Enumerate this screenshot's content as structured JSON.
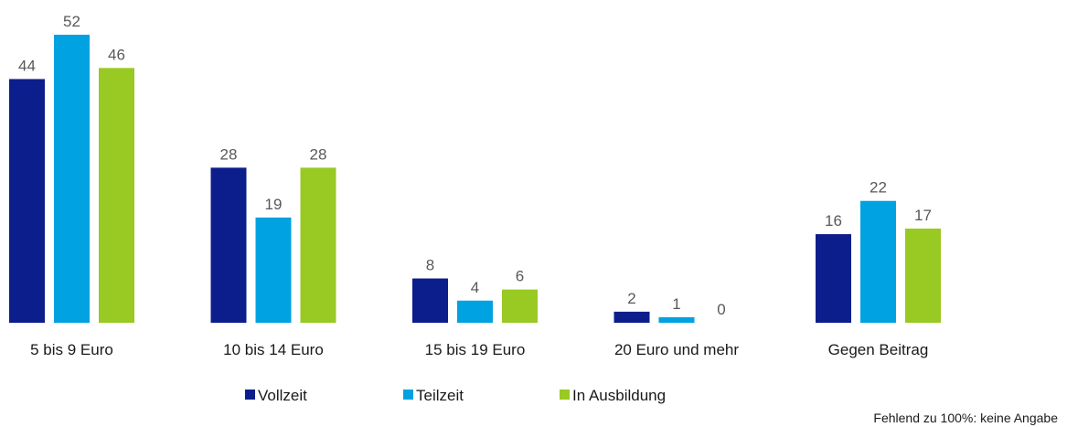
{
  "chart_data": {
    "type": "bar",
    "categories": [
      "5 bis 9 Euro",
      "10 bis 14 Euro",
      "15 bis 19 Euro",
      "20 Euro und mehr",
      "Gegen Beitrag"
    ],
    "series": [
      {
        "name": "Vollzeit",
        "color": "#0c1e8c",
        "values": [
          44,
          28,
          8,
          2,
          16
        ]
      },
      {
        "name": "Teilzeit",
        "color": "#00a2e1",
        "values": [
          52,
          19,
          4,
          1,
          22
        ]
      },
      {
        "name": "In Ausbildung",
        "color": "#99c923",
        "values": [
          46,
          28,
          6,
          0,
          17
        ]
      }
    ],
    "note": "Fehlend zu 100%: keine Angabe"
  }
}
